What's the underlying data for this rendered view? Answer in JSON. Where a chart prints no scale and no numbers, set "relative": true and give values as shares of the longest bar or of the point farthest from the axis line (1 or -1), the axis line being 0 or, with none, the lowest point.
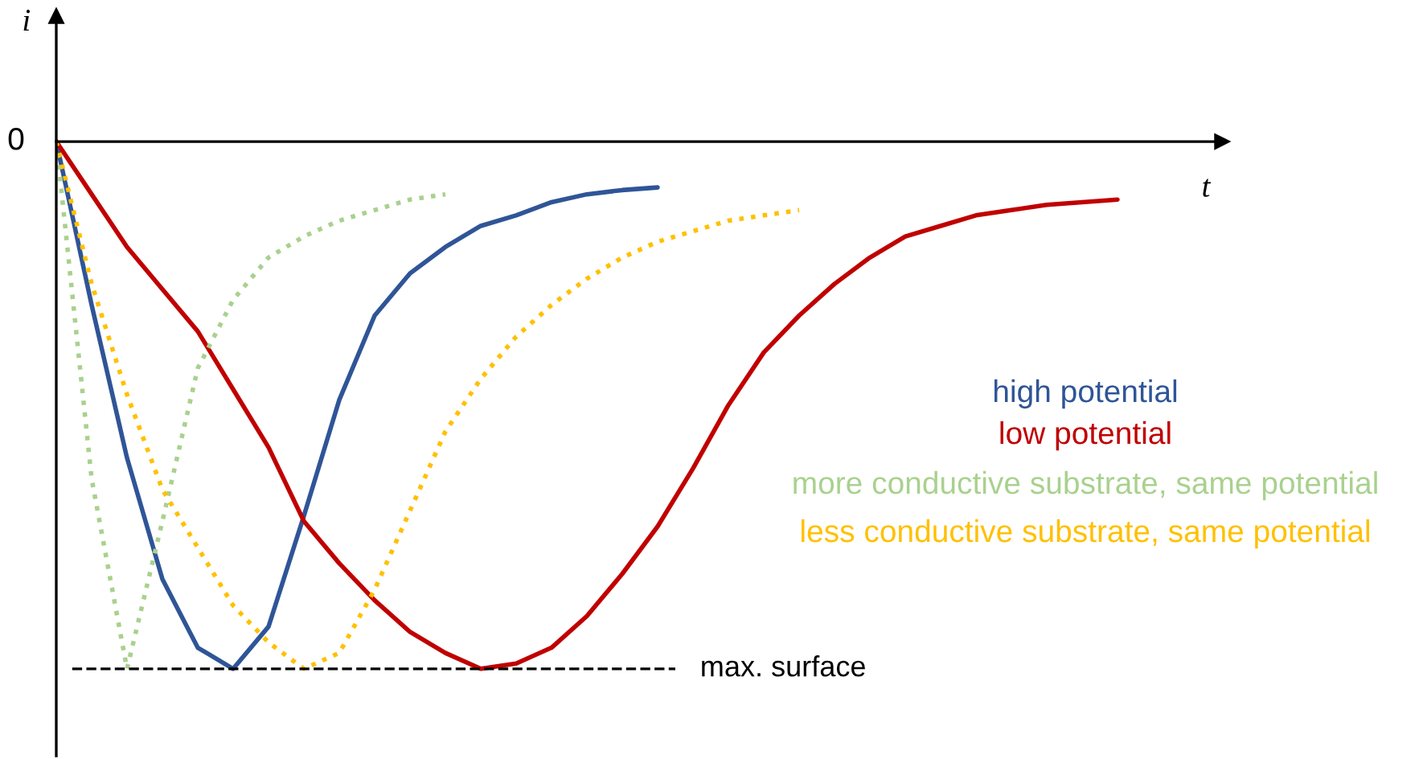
{
  "chart_data": {
    "type": "line",
    "relative": true,
    "xlabel": "t",
    "ylabel": "i",
    "annotations": [
      "0"
    ],
    "categories": [
      null,
      null,
      null,
      null,
      null,
      null,
      null,
      null,
      null,
      null,
      null,
      null,
      null,
      null,
      null,
      null,
      null,
      null,
      null,
      null,
      null,
      null,
      null,
      null,
      null,
      null,
      null,
      null,
      null,
      null,
      null
    ],
    "ref_lines": [
      {
        "axis": "y",
        "value": -1,
        "label": "max. surface",
        "color": "#000000",
        "line_style": "dashed"
      }
    ],
    "series": [
      {
        "name": "high potential",
        "color": "#2f5597",
        "line_style": "solid",
        "values": [
          0,
          -0.31,
          -0.6,
          -0.83,
          -0.96,
          -1,
          -0.92,
          -0.71,
          -0.49,
          -0.33,
          -0.25,
          -0.2,
          -0.16,
          -0.14,
          -0.115,
          -0.1,
          -0.092,
          -0.087,
          null,
          null,
          null,
          null,
          null,
          null,
          null,
          null,
          null,
          null,
          null,
          null,
          null
        ]
      },
      {
        "name": "low potential",
        "color": "#c00000",
        "line_style": "solid",
        "values": [
          0,
          -0.1,
          -0.2,
          -0.28,
          -0.36,
          -0.47,
          -0.58,
          -0.72,
          -0.8,
          -0.87,
          -0.93,
          -0.97,
          -1,
          -0.99,
          -0.96,
          -0.9,
          -0.82,
          -0.73,
          -0.62,
          -0.5,
          -0.4,
          -0.33,
          -0.27,
          -0.22,
          -0.18,
          -0.16,
          -0.14,
          -0.13,
          -0.12,
          -0.115,
          -0.11
        ]
      },
      {
        "name": "more conductive substrate, same potential",
        "color": "#a9d18e",
        "line_style": "dotted",
        "values": [
          0,
          -0.64,
          -1,
          -0.72,
          -0.43,
          -0.3,
          -0.22,
          -0.18,
          -0.15,
          -0.13,
          -0.11,
          -0.1,
          null,
          null,
          null,
          null,
          null,
          null,
          null,
          null,
          null,
          null,
          null,
          null,
          null,
          null,
          null,
          null,
          null,
          null,
          null
        ]
      },
      {
        "name": "less conductive substrate, same potential",
        "color": "#ffc000",
        "line_style": "dotted",
        "values": [
          0,
          -0.27,
          -0.48,
          -0.66,
          -0.77,
          -0.88,
          -0.95,
          -1,
          -0.97,
          -0.85,
          -0.7,
          -0.55,
          -0.45,
          -0.37,
          -0.31,
          -0.26,
          -0.22,
          -0.19,
          -0.17,
          -0.15,
          -0.14,
          -0.13,
          null,
          null,
          null,
          null,
          null,
          null,
          null,
          null,
          null
        ]
      }
    ]
  }
}
